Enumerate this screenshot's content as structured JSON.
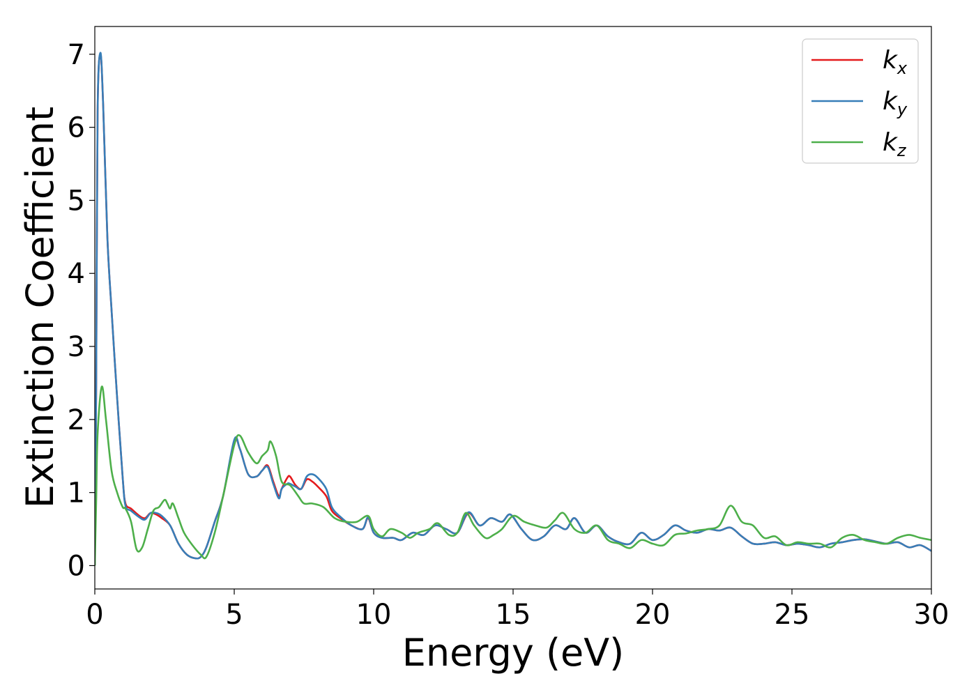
{
  "chart_data": {
    "type": "line",
    "title": "",
    "xlabel": "Energy (eV)",
    "ylabel": "Extinction Coefficient",
    "xlim": [
      0,
      30
    ],
    "ylim": [
      -0.32,
      7.38
    ],
    "xticks": [
      0,
      5,
      10,
      15,
      20,
      25,
      30
    ],
    "yticks": [
      0,
      1,
      2,
      3,
      4,
      5,
      6,
      7
    ],
    "grid": false,
    "legend_position": "top-right",
    "series": [
      {
        "name": "k_x",
        "label_base": "k",
        "label_sub": "x",
        "color": "#e41a1c",
        "x": [
          0,
          0.05,
          0.1,
          0.2,
          0.3,
          0.45,
          0.6,
          0.8,
          1.0,
          1.1,
          1.3,
          1.6,
          1.8,
          2.0,
          2.2,
          2.4,
          2.7,
          3.0,
          3.3,
          3.6,
          3.8,
          4.0,
          4.3,
          4.6,
          5.0,
          5.2,
          5.5,
          5.8,
          6.0,
          6.2,
          6.4,
          6.6,
          6.7,
          6.9,
          7.0,
          7.2,
          7.4,
          7.6,
          7.8,
          8.0,
          8.3,
          8.5,
          8.8,
          9.2,
          9.6,
          9.8,
          10.0,
          10.3,
          10.7,
          11.0,
          11.4,
          11.8,
          12.2,
          12.6,
          13.0,
          13.4,
          13.8,
          14.2,
          14.6,
          14.9,
          15.3,
          15.7,
          16.1,
          16.5,
          16.9,
          17.2,
          17.6,
          18.0,
          18.4,
          18.8,
          19.2,
          19.6,
          20.0,
          20.4,
          20.8,
          21.2,
          21.6,
          22.0,
          22.4,
          22.8,
          23.2,
          23.6,
          24.0,
          24.4,
          24.8,
          25.2,
          25.6,
          26.0,
          26.4,
          26.8,
          27.2,
          27.6,
          28.0,
          28.4,
          28.8,
          29.2,
          29.6,
          30.0
        ],
        "y": [
          0.0,
          2.5,
          6.2,
          7.0,
          6.3,
          4.5,
          3.5,
          2.3,
          1.2,
          0.85,
          0.78,
          0.68,
          0.65,
          0.72,
          0.7,
          0.65,
          0.55,
          0.3,
          0.15,
          0.1,
          0.12,
          0.25,
          0.6,
          0.95,
          1.7,
          1.6,
          1.25,
          1.22,
          1.3,
          1.37,
          1.15,
          0.95,
          1.05,
          1.2,
          1.22,
          1.1,
          1.05,
          1.18,
          1.15,
          1.08,
          0.95,
          0.75,
          0.65,
          0.55,
          0.5,
          0.65,
          0.45,
          0.38,
          0.38,
          0.35,
          0.45,
          0.42,
          0.55,
          0.5,
          0.45,
          0.72,
          0.55,
          0.65,
          0.6,
          0.7,
          0.5,
          0.35,
          0.4,
          0.55,
          0.5,
          0.65,
          0.45,
          0.55,
          0.4,
          0.32,
          0.3,
          0.45,
          0.35,
          0.42,
          0.55,
          0.48,
          0.45,
          0.5,
          0.48,
          0.52,
          0.4,
          0.3,
          0.3,
          0.32,
          0.28,
          0.3,
          0.28,
          0.25,
          0.3,
          0.32,
          0.35,
          0.36,
          0.33,
          0.3,
          0.32,
          0.25,
          0.28,
          0.2
        ]
      },
      {
        "name": "k_y",
        "label_base": "k",
        "label_sub": "y",
        "color": "#377eb8",
        "x": [
          0,
          0.05,
          0.1,
          0.2,
          0.3,
          0.45,
          0.6,
          0.8,
          1.0,
          1.1,
          1.3,
          1.6,
          1.8,
          2.0,
          2.2,
          2.4,
          2.7,
          3.0,
          3.3,
          3.6,
          3.8,
          4.0,
          4.3,
          4.6,
          5.0,
          5.2,
          5.5,
          5.8,
          6.0,
          6.2,
          6.4,
          6.6,
          6.7,
          6.9,
          7.0,
          7.2,
          7.4,
          7.6,
          7.8,
          8.0,
          8.3,
          8.5,
          8.8,
          9.2,
          9.6,
          9.8,
          10.0,
          10.3,
          10.7,
          11.0,
          11.4,
          11.8,
          12.2,
          12.6,
          13.0,
          13.4,
          13.8,
          14.2,
          14.6,
          14.9,
          15.3,
          15.7,
          16.1,
          16.5,
          16.9,
          17.2,
          17.6,
          18.0,
          18.4,
          18.8,
          19.2,
          19.6,
          20.0,
          20.4,
          20.8,
          21.2,
          21.6,
          22.0,
          22.4,
          22.8,
          23.2,
          23.6,
          24.0,
          24.4,
          24.8,
          25.2,
          25.6,
          26.0,
          26.4,
          26.8,
          27.2,
          27.6,
          28.0,
          28.4,
          28.8,
          29.2,
          29.6,
          30.0
        ],
        "y": [
          0.0,
          2.5,
          6.2,
          7.02,
          6.3,
          4.5,
          3.5,
          2.3,
          1.2,
          0.82,
          0.75,
          0.66,
          0.63,
          0.72,
          0.72,
          0.68,
          0.55,
          0.3,
          0.15,
          0.1,
          0.12,
          0.25,
          0.6,
          0.95,
          1.72,
          1.6,
          1.25,
          1.22,
          1.3,
          1.35,
          1.12,
          0.92,
          1.05,
          1.12,
          1.12,
          1.08,
          1.05,
          1.22,
          1.25,
          1.2,
          1.05,
          0.8,
          0.67,
          0.55,
          0.5,
          0.66,
          0.45,
          0.38,
          0.38,
          0.35,
          0.45,
          0.42,
          0.55,
          0.5,
          0.45,
          0.73,
          0.55,
          0.65,
          0.6,
          0.7,
          0.5,
          0.35,
          0.4,
          0.55,
          0.5,
          0.65,
          0.45,
          0.55,
          0.4,
          0.32,
          0.3,
          0.45,
          0.35,
          0.42,
          0.55,
          0.48,
          0.45,
          0.5,
          0.48,
          0.52,
          0.4,
          0.3,
          0.3,
          0.32,
          0.28,
          0.3,
          0.28,
          0.25,
          0.3,
          0.32,
          0.35,
          0.36,
          0.33,
          0.3,
          0.32,
          0.25,
          0.28,
          0.2
        ]
      },
      {
        "name": "k_z",
        "label_base": "k",
        "label_sub": "z",
        "color": "#4daf4a",
        "x": [
          0,
          0.05,
          0.1,
          0.25,
          0.4,
          0.6,
          0.8,
          1.0,
          1.1,
          1.3,
          1.5,
          1.7,
          1.9,
          2.1,
          2.3,
          2.5,
          2.6,
          2.7,
          2.8,
          3.0,
          3.2,
          3.5,
          3.8,
          4.0,
          4.3,
          4.6,
          5.0,
          5.2,
          5.5,
          5.8,
          6.0,
          6.2,
          6.3,
          6.5,
          6.7,
          7.0,
          7.3,
          7.5,
          7.8,
          8.2,
          8.6,
          9.0,
          9.4,
          9.8,
          10.0,
          10.3,
          10.6,
          11.0,
          11.3,
          11.6,
          12.0,
          12.3,
          12.7,
          13.0,
          13.3,
          13.6,
          14.0,
          14.3,
          14.6,
          15.0,
          15.4,
          15.8,
          16.2,
          16.5,
          16.8,
          17.2,
          17.6,
          18.0,
          18.4,
          18.8,
          19.2,
          19.6,
          20.0,
          20.4,
          20.8,
          21.2,
          21.6,
          22.0,
          22.4,
          22.8,
          23.2,
          23.6,
          24.0,
          24.4,
          24.8,
          25.2,
          25.6,
          26.0,
          26.4,
          26.8,
          27.2,
          27.6,
          28.0,
          28.4,
          28.8,
          29.2,
          29.6,
          30.0
        ],
        "y": [
          0.0,
          0.9,
          1.8,
          2.45,
          2.0,
          1.3,
          1.0,
          0.8,
          0.78,
          0.6,
          0.22,
          0.25,
          0.5,
          0.75,
          0.8,
          0.9,
          0.85,
          0.78,
          0.85,
          0.65,
          0.45,
          0.28,
          0.15,
          0.12,
          0.45,
          0.95,
          1.65,
          1.78,
          1.55,
          1.4,
          1.5,
          1.58,
          1.7,
          1.5,
          1.15,
          1.1,
          0.95,
          0.85,
          0.85,
          0.8,
          0.65,
          0.6,
          0.6,
          0.68,
          0.5,
          0.4,
          0.5,
          0.45,
          0.38,
          0.45,
          0.5,
          0.58,
          0.42,
          0.45,
          0.72,
          0.55,
          0.38,
          0.42,
          0.5,
          0.68,
          0.6,
          0.55,
          0.52,
          0.62,
          0.72,
          0.5,
          0.45,
          0.55,
          0.35,
          0.3,
          0.24,
          0.35,
          0.3,
          0.28,
          0.42,
          0.44,
          0.48,
          0.5,
          0.55,
          0.82,
          0.6,
          0.55,
          0.38,
          0.4,
          0.28,
          0.32,
          0.3,
          0.3,
          0.25,
          0.38,
          0.42,
          0.35,
          0.32,
          0.3,
          0.38,
          0.42,
          0.38,
          0.35
        ]
      }
    ]
  }
}
